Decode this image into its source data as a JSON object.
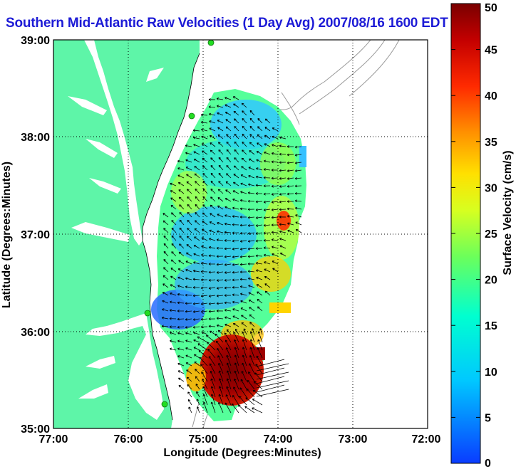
{
  "title": "Southern Mid-Atlantic Raw Velocities (1 Day Avg) 2007/08/16 1600 EDT",
  "axes": {
    "xlabel": "Longitude (Degrees:Minutes)",
    "ylabel": "Latitude (Degrees:Minutes)",
    "x_ticks": [
      "77:00",
      "76:00",
      "75:00",
      "74:00",
      "73:00",
      "72:00"
    ],
    "y_ticks": [
      "39:00",
      "38:00",
      "37:00",
      "36:00",
      "35:00"
    ],
    "xlim": [
      -77,
      -72
    ],
    "ylim": [
      35,
      39
    ],
    "grid": "dotted"
  },
  "colorbar": {
    "label": "Surface Velocity (cm/s)",
    "ticks": [
      "50",
      "45",
      "40",
      "35",
      "30",
      "25",
      "20",
      "15",
      "10",
      "5",
      "0"
    ],
    "range": [
      0,
      50
    ]
  },
  "colors": {
    "land": "#5ef5a8",
    "title": "#1d1bd6",
    "bathymetry": "#9a9a9a",
    "arrows": "#000000",
    "stations": "#22dd22"
  },
  "icons": [
    "hf-radar-station-icon"
  ]
}
